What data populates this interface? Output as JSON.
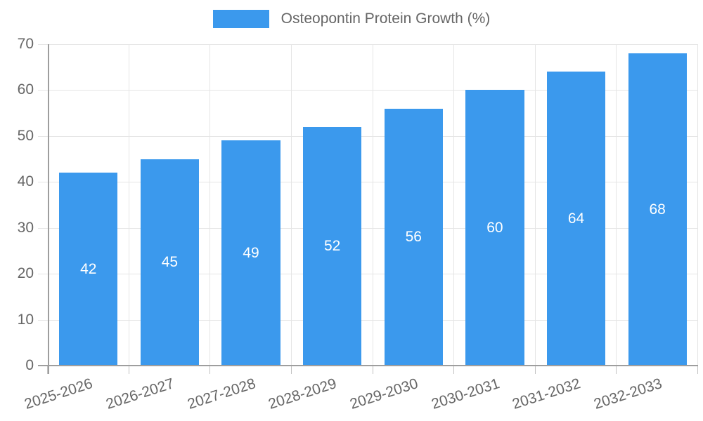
{
  "chart_data": {
    "type": "bar",
    "title": "Osteopontin Protein Growth (%)",
    "categories": [
      "2025-2026",
      "2026-2027",
      "2027-2028",
      "2028-2029",
      "2029-2030",
      "2030-2031",
      "2031-2032",
      "2032-2033"
    ],
    "values": [
      42,
      45,
      49,
      52,
      56,
      60,
      64,
      68
    ],
    "xlabel": "",
    "ylabel": "",
    "ylim": [
      0,
      70
    ],
    "yticks": [
      0,
      10,
      20,
      30,
      40,
      50,
      60,
      70
    ],
    "grid": true,
    "legend_position": "top-center",
    "bar_color": "#3b99ed",
    "bar_label_color": "#ffffff",
    "axis_text_color": "#666666",
    "grid_color": "#e5e5e5",
    "axis_line_color": "#9e9e9e"
  },
  "legend": {
    "label": "Osteopontin Protein Growth (%)"
  }
}
